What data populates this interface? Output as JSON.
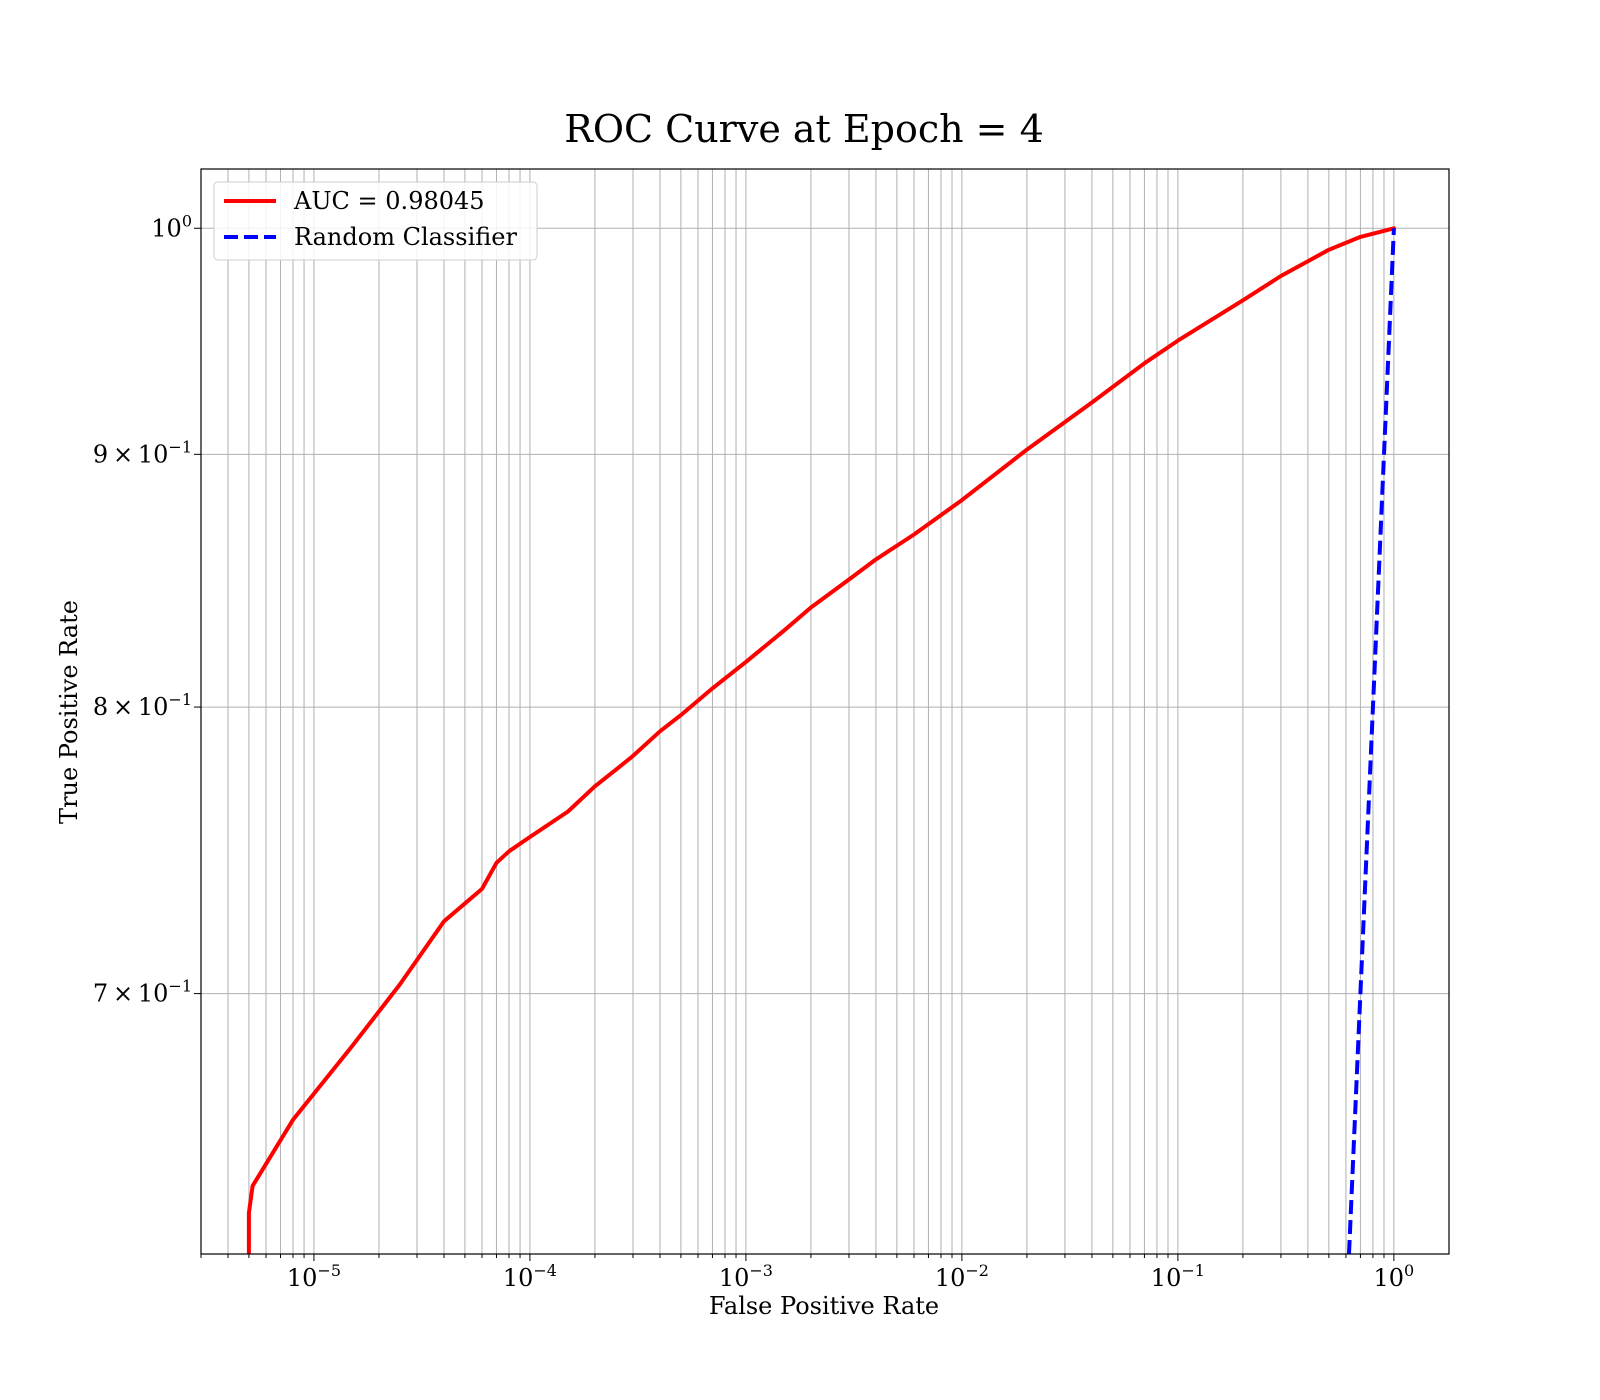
{
  "chart_data": {
    "type": "line",
    "title": "ROC Curve at Epoch = 4",
    "xlabel": "False Positive Rate",
    "ylabel": "True Positive Rate",
    "xscale": "log",
    "yscale": "log",
    "xlim": [
      3e-06,
      1.8
    ],
    "ylim": [
      0.62,
      1.028
    ],
    "grid": "major and minor (x), major (y)",
    "legend_position": "top-left",
    "x_ticks": [
      {
        "value": 1e-05,
        "base": "10",
        "exp": "−5"
      },
      {
        "value": 0.0001,
        "base": "10",
        "exp": "−4"
      },
      {
        "value": 0.001,
        "base": "10",
        "exp": "−3"
      },
      {
        "value": 0.01,
        "base": "10",
        "exp": "−2"
      },
      {
        "value": 0.1,
        "base": "10",
        "exp": "−1"
      },
      {
        "value": 1,
        "base": "10",
        "exp": "0"
      }
    ],
    "y_ticks": [
      {
        "value": 0.7,
        "mant": "7 × 10",
        "exp": "−1"
      },
      {
        "value": 0.8,
        "mant": "8 × 10",
        "exp": "−1"
      },
      {
        "value": 0.9,
        "mant": "9 × 10",
        "exp": "−1"
      },
      {
        "value": 1.0,
        "mant": "10",
        "exp": "0"
      }
    ],
    "series": [
      {
        "name": "AUC = 0.98045",
        "color": "#ff0000",
        "style": "solid",
        "x": [
          5e-06,
          5e-06,
          5.2e-06,
          8e-06,
          1.5e-05,
          2.5e-05,
          4e-05,
          6e-05,
          7e-05,
          8e-05,
          0.0001,
          0.00015,
          0.0002,
          0.00025,
          0.0003,
          0.0004,
          0.0005,
          0.0007,
          0.001,
          0.0015,
          0.002,
          0.003,
          0.004,
          0.006,
          0.01,
          0.02,
          0.04,
          0.07,
          0.1,
          0.2,
          0.3,
          0.5,
          0.7,
          1.0
        ],
        "y": [
          0.62,
          0.632,
          0.64,
          0.66,
          0.683,
          0.703,
          0.724,
          0.735,
          0.744,
          0.748,
          0.753,
          0.762,
          0.771,
          0.777,
          0.782,
          0.791,
          0.797,
          0.807,
          0.817,
          0.829,
          0.838,
          0.849,
          0.857,
          0.867,
          0.881,
          0.902,
          0.922,
          0.939,
          0.949,
          0.967,
          0.978,
          0.99,
          0.996,
          1.0
        ]
      },
      {
        "name": "Random Classifier",
        "color": "#0000ff",
        "style": "dashed",
        "x": [
          0.62,
          1.0
        ],
        "y": [
          0.62,
          1.0
        ]
      }
    ]
  }
}
